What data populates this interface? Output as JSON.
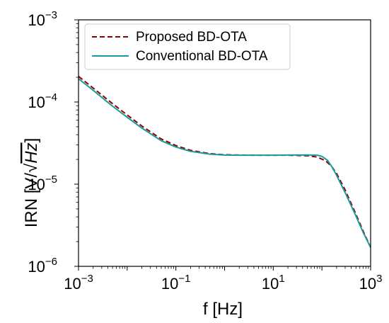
{
  "chart_data": {
    "type": "line",
    "xlabel": "f [Hz]",
    "ylabel_main": "IRN [V/",
    "ylabel_sqrt": "Hz",
    "ylabel_end": "]",
    "xscale": "log",
    "yscale": "log",
    "xlim": [
      0.001,
      1000
    ],
    "ylim": [
      1e-06,
      0.001
    ],
    "grid": false,
    "legend_position": "top-left",
    "x_ticks": [
      {
        "base": "10",
        "exp": "−3",
        "value": 0.001
      },
      {
        "base": "10",
        "exp": "−1",
        "value": 0.1
      },
      {
        "base": "10",
        "exp": "1",
        "value": 10
      },
      {
        "base": "10",
        "exp": "3",
        "value": 1000
      }
    ],
    "y_ticks": [
      {
        "base": "10",
        "exp": "−6",
        "value": 1e-06
      },
      {
        "base": "10",
        "exp": "−5",
        "value": 1e-05
      },
      {
        "base": "10",
        "exp": "−4",
        "value": 0.0001
      },
      {
        "base": "10",
        "exp": "−3",
        "value": 0.001
      }
    ],
    "series": [
      {
        "name": "Proposed BD-OTA",
        "color": "#8b0000",
        "dash": "dashed",
        "points": [
          [
            0.001,
            0.000205
          ],
          [
            0.002,
            0.000148
          ],
          [
            0.005,
            9.55e-05
          ],
          [
            0.01,
            6.95e-05
          ],
          [
            0.02,
            5.1e-05
          ],
          [
            0.05,
            3.55e-05
          ],
          [
            0.1,
            2.95e-05
          ],
          [
            0.2,
            2.58e-05
          ],
          [
            0.5,
            2.35e-05
          ],
          [
            1,
            2.28e-05
          ],
          [
            2,
            2.26e-05
          ],
          [
            5,
            2.25e-05
          ],
          [
            10,
            2.25e-05
          ],
          [
            20,
            2.25e-05
          ],
          [
            50,
            2.22e-05
          ],
          [
            80,
            2.14e-05
          ],
          [
            120,
            1.92e-05
          ],
          [
            160,
            1.63e-05
          ],
          [
            200,
            1.35e-05
          ],
          [
            300,
            8.5e-06
          ],
          [
            500,
            4.3e-06
          ],
          [
            700,
            2.7e-06
          ],
          [
            1000,
            1.7e-06
          ]
        ]
      },
      {
        "name": "Conventional BD-OTA",
        "color": "#1a9a9a",
        "dash": "solid",
        "points": [
          [
            0.001,
            0.000192
          ],
          [
            0.002,
            0.000139
          ],
          [
            0.005,
            8.9e-05
          ],
          [
            0.01,
            6.52e-05
          ],
          [
            0.02,
            4.82e-05
          ],
          [
            0.05,
            3.38e-05
          ],
          [
            0.1,
            2.83e-05
          ],
          [
            0.2,
            2.51e-05
          ],
          [
            0.5,
            2.32e-05
          ],
          [
            1,
            2.26e-05
          ],
          [
            2,
            2.25e-05
          ],
          [
            5,
            2.25e-05
          ],
          [
            10,
            2.25e-05
          ],
          [
            20,
            2.26e-05
          ],
          [
            50,
            2.27e-05
          ],
          [
            80,
            2.25e-05
          ],
          [
            100,
            2.18e-05
          ],
          [
            130,
            1.95e-05
          ],
          [
            160,
            1.63e-05
          ],
          [
            200,
            1.28e-05
          ],
          [
            300,
            7.9e-06
          ],
          [
            500,
            4.1e-06
          ],
          [
            700,
            2.6e-06
          ],
          [
            1000,
            1.7e-06
          ]
        ]
      }
    ]
  }
}
